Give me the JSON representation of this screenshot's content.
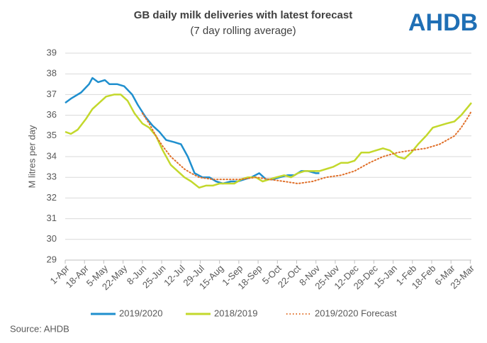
{
  "chart_data": {
    "type": "line",
    "title": "GB daily milk deliveries with latest forecast",
    "subtitle": "(7 day rolling average)",
    "logo": "AHDB",
    "source": "Source: AHDB",
    "y_label": "M litres per day",
    "ylim": [
      29,
      39
    ],
    "yticks": [
      29,
      30,
      31,
      32,
      33,
      34,
      35,
      36,
      37,
      38,
      39
    ],
    "xlim": [
      0,
      358
    ],
    "xticks": [
      {
        "value": 0,
        "label": "1-Apr"
      },
      {
        "value": 17,
        "label": "18-Apr"
      },
      {
        "value": 34,
        "label": "5-May"
      },
      {
        "value": 51,
        "label": "22-May"
      },
      {
        "value": 68,
        "label": "8-Jun"
      },
      {
        "value": 85,
        "label": "25-Jun"
      },
      {
        "value": 102,
        "label": "12-Jul"
      },
      {
        "value": 119,
        "label": "29-Jul"
      },
      {
        "value": 136,
        "label": "15-Aug"
      },
      {
        "value": 153,
        "label": "1-Sep"
      },
      {
        "value": 170,
        "label": "18-Sep"
      },
      {
        "value": 187,
        "label": "5-Oct"
      },
      {
        "value": 204,
        "label": "22-Oct"
      },
      {
        "value": 221,
        "label": "8-Nov"
      },
      {
        "value": 238,
        "label": "25-Nov"
      },
      {
        "value": 255,
        "label": "12-Dec"
      },
      {
        "value": 272,
        "label": "29-Dec"
      },
      {
        "value": 289,
        "label": "15-Jan"
      },
      {
        "value": 306,
        "label": "1-Feb"
      },
      {
        "value": 323,
        "label": "18-Feb"
      },
      {
        "value": 340,
        "label": "6-Mar"
      },
      {
        "value": 357,
        "label": "23-Mar"
      }
    ],
    "grid": true,
    "series": [
      {
        "name": "2019/2020",
        "color": "#1f8fce",
        "style": "solid",
        "x": [
          0,
          5,
          14,
          21,
          24,
          29,
          35,
          39,
          46,
          52,
          59,
          64,
          71,
          77,
          83,
          89,
          96,
          102,
          108,
          114,
          121,
          127,
          133,
          139,
          146,
          152,
          158,
          164,
          171,
          177,
          183,
          189,
          196,
          202,
          208,
          214,
          221,
          224
        ],
        "values": [
          36.6,
          36.8,
          37.1,
          37.5,
          37.8,
          37.6,
          37.7,
          37.5,
          37.5,
          37.4,
          37.0,
          36.5,
          35.9,
          35.5,
          35.2,
          34.8,
          34.7,
          34.6,
          34.0,
          33.2,
          33.0,
          33.0,
          32.8,
          32.7,
          32.8,
          32.8,
          32.9,
          33.0,
          33.2,
          32.9,
          32.9,
          33.0,
          33.1,
          33.1,
          33.3,
          33.3,
          33.2,
          33.2
        ]
      },
      {
        "name": "2018/2019",
        "color": "#c3d82c",
        "style": "solid",
        "x": [
          0,
          5,
          11,
          18,
          24,
          30,
          36,
          43,
          49,
          55,
          61,
          68,
          74,
          80,
          86,
          93,
          99,
          105,
          111,
          118,
          124,
          130,
          136,
          143,
          149,
          155,
          161,
          168,
          174,
          180,
          186,
          193,
          199,
          205,
          211,
          218,
          224,
          230,
          236,
          243,
          249,
          255,
          261,
          268,
          274,
          280,
          286,
          293,
          299,
          305,
          311,
          318,
          324,
          330,
          336,
          343,
          349,
          355,
          358
        ],
        "values": [
          35.2,
          35.1,
          35.3,
          35.8,
          36.3,
          36.6,
          36.9,
          37.0,
          37.0,
          36.7,
          36.1,
          35.6,
          35.4,
          35.0,
          34.3,
          33.6,
          33.3,
          33.0,
          32.8,
          32.5,
          32.6,
          32.6,
          32.7,
          32.7,
          32.7,
          32.9,
          33.0,
          33.0,
          32.8,
          32.9,
          33.0,
          33.1,
          33.0,
          33.2,
          33.3,
          33.3,
          33.3,
          33.4,
          33.5,
          33.7,
          33.7,
          33.8,
          34.2,
          34.2,
          34.3,
          34.4,
          34.3,
          34.0,
          33.9,
          34.2,
          34.6,
          35.0,
          35.4,
          35.5,
          35.6,
          35.7,
          36.0,
          36.4,
          36.6
        ]
      },
      {
        "name": "2019/2020 Forecast",
        "color": "#e0702a",
        "style": "dotted",
        "x": [
          68,
          74,
          80,
          86,
          93,
          99,
          105,
          111,
          118,
          130,
          143,
          155,
          168,
          180,
          193,
          205,
          218,
          230,
          243,
          255,
          268,
          280,
          293,
          305,
          318,
          330,
          343,
          349,
          355,
          358
        ],
        "values": [
          36.1,
          35.6,
          35.0,
          34.5,
          34.0,
          33.7,
          33.4,
          33.2,
          33.0,
          32.9,
          32.9,
          32.9,
          33.0,
          32.9,
          32.8,
          32.7,
          32.8,
          33.0,
          33.1,
          33.3,
          33.7,
          34.0,
          34.2,
          34.3,
          34.4,
          34.6,
          35.0,
          35.4,
          35.9,
          36.2
        ]
      }
    ]
  }
}
